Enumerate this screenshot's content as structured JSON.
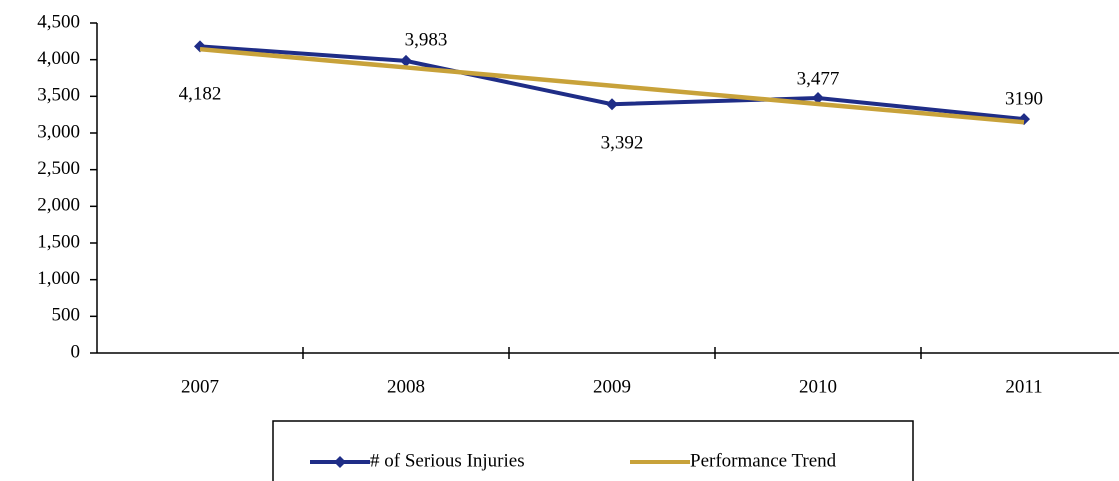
{
  "chart_data": {
    "type": "line",
    "categories": [
      "2007",
      "2008",
      "2009",
      "2010",
      "2011"
    ],
    "series": [
      {
        "name": "# of Serious Injuries",
        "color": "#1f2d87",
        "marker": "diamond",
        "values": [
          4182,
          3983,
          3392,
          3477,
          3190
        ],
        "value_labels": [
          "4,182",
          "3,983",
          "3,392",
          "3,477",
          "3190"
        ]
      },
      {
        "name": "Performance Trend",
        "color": "#c8a23a",
        "values": [
          4143,
          3894,
          3645,
          3396,
          3147
        ]
      }
    ],
    "ylim": [
      0,
      4500
    ],
    "yticks": [
      0,
      500,
      {
        "value": 1000,
        "label": "1,000"
      },
      {
        "value": 1500,
        "label": "1,500"
      },
      {
        "value": 2000,
        "label": "2,000"
      },
      {
        "value": 2500,
        "label": "2,500"
      },
      {
        "value": 3000,
        "label": "3,000"
      },
      {
        "value": 3500,
        "label": "3,500"
      },
      {
        "value": 4000,
        "label": "4,000"
      },
      {
        "value": 4500,
        "label": "4,500"
      }
    ],
    "grid": false,
    "legend": "bottom"
  }
}
